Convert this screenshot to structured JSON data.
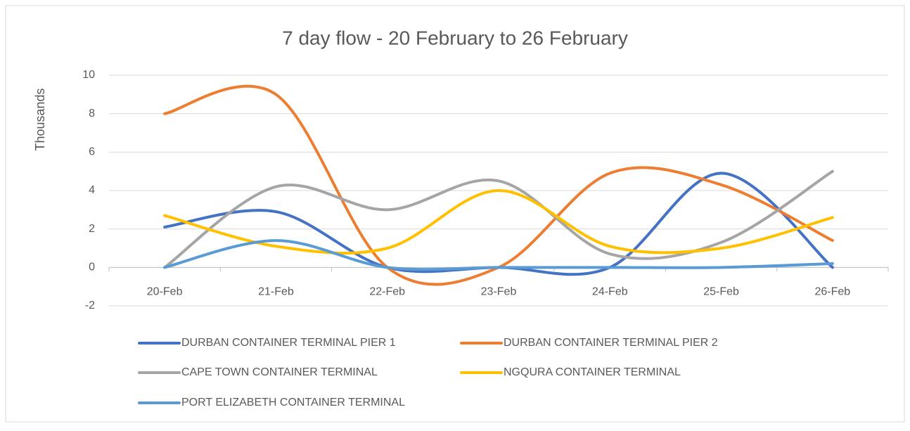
{
  "chart_data": {
    "type": "line",
    "title": "7 day flow - 20 February to 26 February",
    "ylabel": "Thousands",
    "categories": [
      "20-Feb",
      "21-Feb",
      "22-Feb",
      "23-Feb",
      "24-Feb",
      "25-Feb",
      "26-Feb"
    ],
    "series": [
      {
        "name": "DURBAN CONTAINER TERMINAL PIER 1",
        "color": "#4472c4",
        "values": [
          2.1,
          2.9,
          0,
          0,
          0,
          4.9,
          0
        ]
      },
      {
        "name": "DURBAN CONTAINER TERMINAL PIER 2",
        "color": "#ed7d31",
        "values": [
          8.0,
          9.0,
          0,
          0,
          4.9,
          4.3,
          1.4
        ]
      },
      {
        "name": "CAPE TOWN CONTAINER TERMINAL",
        "color": "#a5a5a5",
        "values": [
          0,
          4.2,
          3.0,
          4.5,
          0.7,
          1.3,
          5.0
        ]
      },
      {
        "name": "NGQURA CONTAINER TERMINAL",
        "color": "#ffc000",
        "values": [
          2.7,
          1.1,
          1.0,
          4.0,
          1.1,
          1.0,
          2.6
        ]
      },
      {
        "name": "PORT ELIZABETH CONTAINER TERMINAL",
        "color": "#5b9bd5",
        "values": [
          0,
          1.4,
          0,
          0,
          0,
          0,
          0.2
        ]
      }
    ],
    "ylim": [
      -2,
      10
    ],
    "yticks": [
      -2,
      0,
      2,
      4,
      6,
      8,
      10
    ],
    "grid": true,
    "smooth": true,
    "legend": "bottom"
  }
}
